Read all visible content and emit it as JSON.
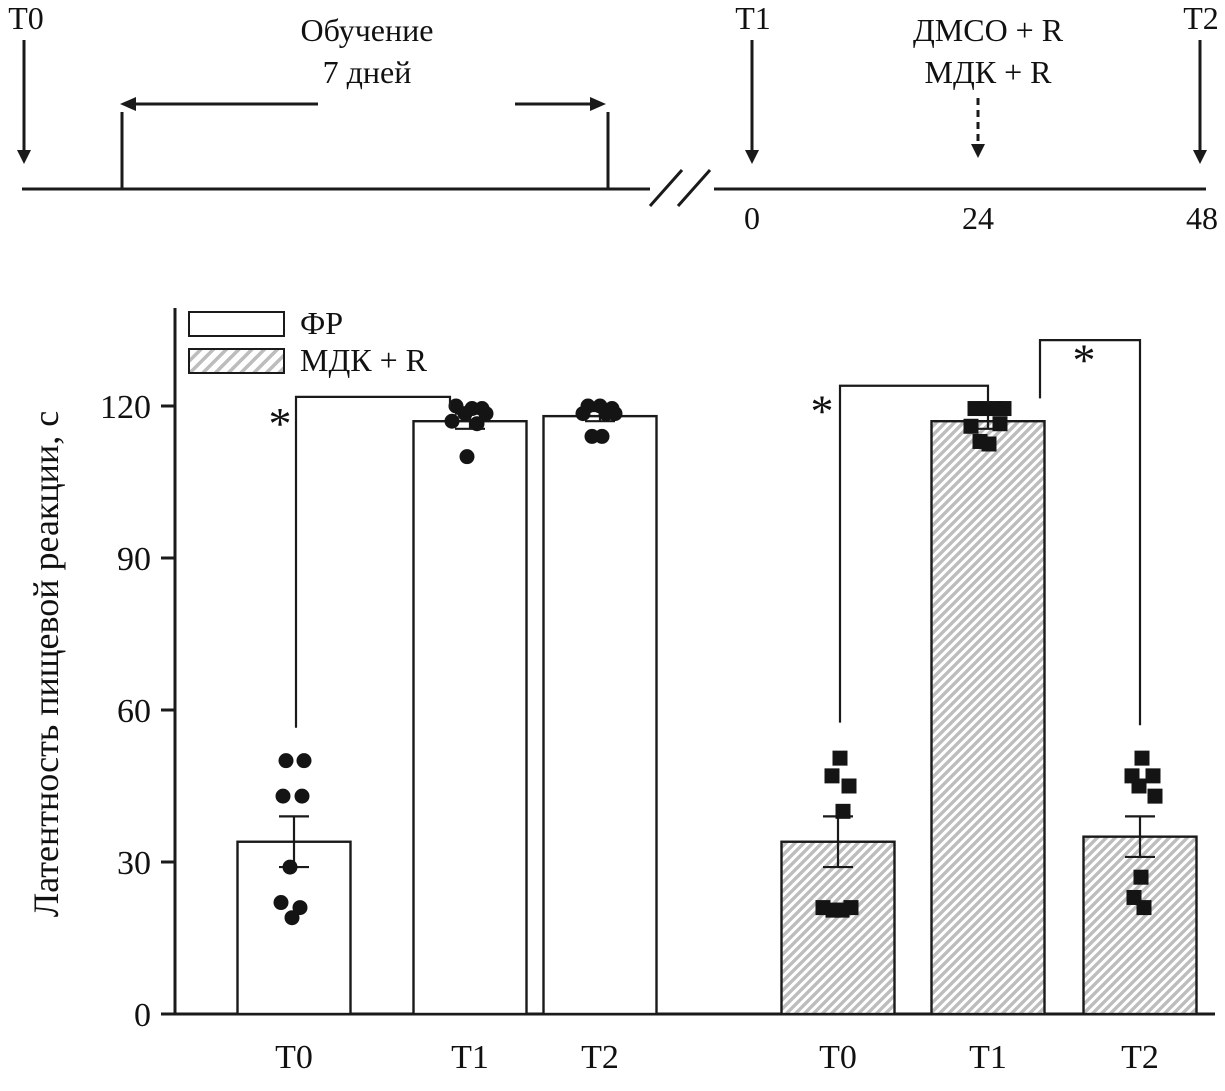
{
  "timeline": {
    "t0_label": "T0",
    "t1_label": "T1",
    "t2_label": "T2",
    "training_line1": "Обучение",
    "training_line2": "7 дней",
    "treatment_line1": "ДМСО + R",
    "treatment_line2": "МДК + R",
    "axis_tick_labels": [
      "0",
      "24",
      "48"
    ]
  },
  "chart_data": {
    "type": "bar",
    "ylabel": "Латентность пищевой реакции, с",
    "ylim": [
      0,
      120
    ],
    "yticks": [
      0,
      30,
      60,
      90,
      120
    ],
    "x_groups": [
      "ФР",
      "МДК + R"
    ],
    "categories": [
      "T0",
      "T1",
      "T2"
    ],
    "legend": [
      {
        "label": "ФР",
        "fill": "plain",
        "marker": "circle"
      },
      {
        "label": "МДК + R",
        "fill": "hatched",
        "marker": "square"
      }
    ],
    "series": [
      {
        "name": "ФР",
        "marker": "circle",
        "fill": "plain",
        "bars": [
          {
            "x_label": "T0",
            "mean": 34,
            "err": 5,
            "points": [
              [
                -8,
                50
              ],
              [
                10,
                50
              ],
              [
                -11,
                43
              ],
              [
                8,
                43
              ],
              [
                -4,
                29
              ],
              [
                -13,
                22
              ],
              [
                6,
                21
              ],
              [
                -2,
                19
              ]
            ]
          },
          {
            "x_label": "T1",
            "mean": 117,
            "err": 1.5,
            "points": [
              [
                -14,
                120
              ],
              [
                2,
                119.5
              ],
              [
                12,
                119.5
              ],
              [
                -5,
                118.5
              ],
              [
                16,
                118.5
              ],
              [
                -18,
                117
              ],
              [
                7,
                116.5
              ],
              [
                -3,
                110
              ]
            ]
          },
          {
            "x_label": "T2",
            "mean": 118,
            "err": 1,
            "points": [
              [
                -12,
                120
              ],
              [
                0,
                120
              ],
              [
                12,
                119.5
              ],
              [
                -17,
                118.5
              ],
              [
                6,
                118.5
              ],
              [
                15,
                118.5
              ],
              [
                -8,
                114
              ],
              [
                2,
                114
              ]
            ]
          }
        ]
      },
      {
        "name": "МДК + R",
        "marker": "square",
        "fill": "hatched",
        "bars": [
          {
            "x_label": "T0",
            "mean": 34,
            "err": 5,
            "points": [
              [
                2,
                50.5
              ],
              [
                -6,
                47
              ],
              [
                11,
                45
              ],
              [
                5,
                40
              ],
              [
                -15,
                21
              ],
              [
                -5,
                20.5
              ],
              [
                4,
                20.5
              ],
              [
                13,
                21
              ]
            ]
          },
          {
            "x_label": "T1",
            "mean": 117,
            "err": 1.5,
            "points": [
              [
                -13,
                119.5
              ],
              [
                -3,
                119.5
              ],
              [
                7,
                119.5
              ],
              [
                16,
                119.5
              ],
              [
                -17,
                116
              ],
              [
                -8,
                113
              ],
              [
                1,
                112.5
              ],
              [
                12,
                116.5
              ]
            ]
          },
          {
            "x_label": "T2",
            "mean": 35,
            "err": 4,
            "points": [
              [
                2,
                50.5
              ],
              [
                -8,
                47
              ],
              [
                13,
                47
              ],
              [
                -1,
                45
              ],
              [
                15,
                43
              ],
              [
                1,
                27
              ],
              [
                -6,
                23
              ],
              [
                4,
                21
              ]
            ]
          }
        ]
      }
    ],
    "significance": [
      {
        "label": "*",
        "path": [
          [
            296,
            56.5
          ],
          [
            296,
            121.8
          ],
          [
            450,
            121.8
          ],
          [
            450,
            119.5
          ]
        ],
        "star": [
          280,
          113.5
        ]
      },
      {
        "label": "*",
        "path": [
          [
            840,
            57.5
          ],
          [
            840,
            124
          ],
          [
            988,
            124
          ],
          [
            988,
            120.5
          ]
        ],
        "star": [
          822,
          116
        ]
      },
      {
        "label": "*",
        "path": [
          [
            1040,
            121.5
          ],
          [
            1040,
            133
          ],
          [
            1140,
            133
          ],
          [
            1140,
            57
          ]
        ],
        "star": [
          1084,
          126
        ]
      }
    ]
  }
}
